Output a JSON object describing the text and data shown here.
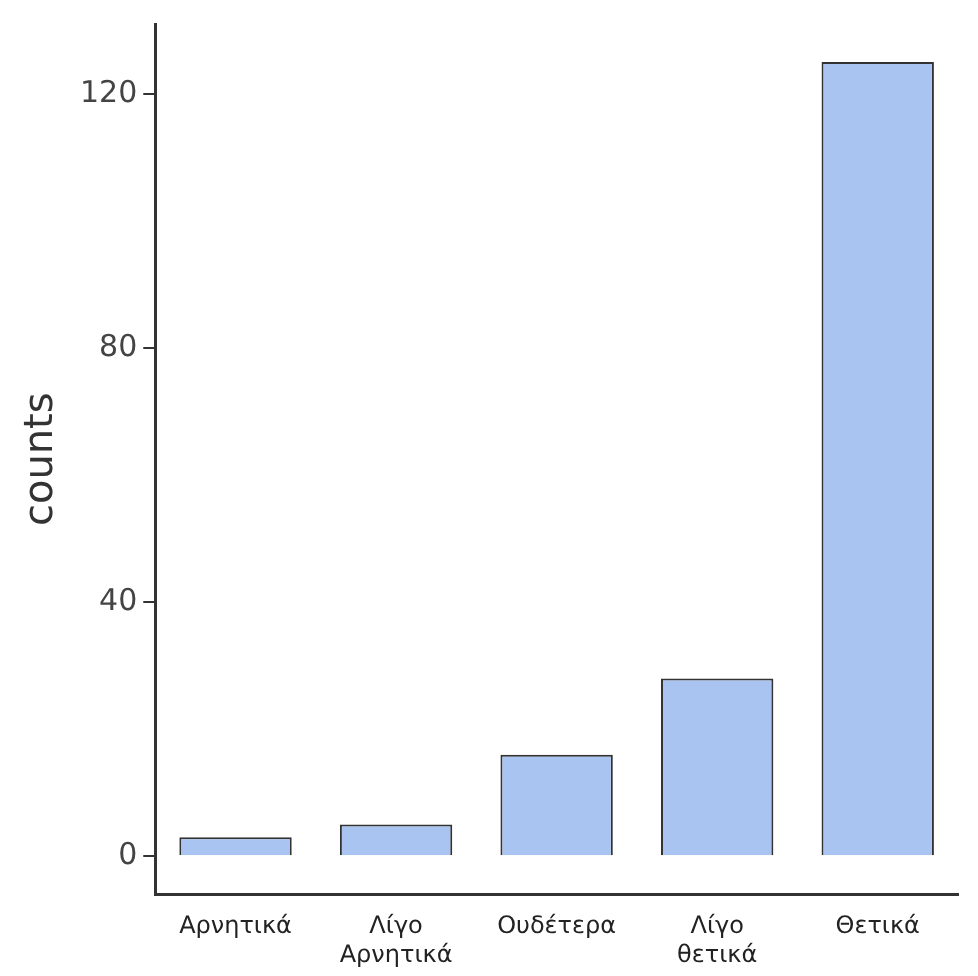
{
  "chart_data": {
    "type": "bar",
    "ylabel": "counts",
    "categories": [
      "Αρνητικά",
      "Λίγο Αρνητικά",
      "Ουδέτερα",
      "Λίγο θετικά",
      "Θετικά"
    ],
    "values": [
      3,
      5,
      16,
      28,
      125
    ],
    "color": "#a9c4f0",
    "ylim": [
      -6,
      131
    ],
    "yticks": [
      0,
      40,
      80,
      120
    ],
    "grid": false,
    "legend": false
  }
}
